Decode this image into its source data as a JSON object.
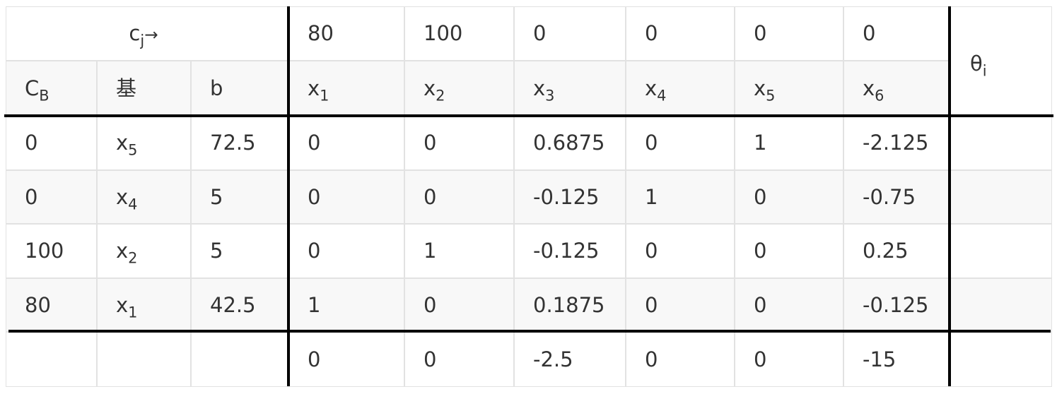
{
  "cj_row": {
    "label_var": "c",
    "label_sub": "j",
    "label_arrow": "→",
    "values": [
      "80",
      "100",
      "0",
      "0",
      "0",
      "0"
    ]
  },
  "header_row": {
    "cb_var": "C",
    "cb_sub": "B",
    "basis": "基",
    "b": "b",
    "vars": [
      {
        "var": "x",
        "sub": "1"
      },
      {
        "var": "x",
        "sub": "2"
      },
      {
        "var": "x",
        "sub": "3"
      },
      {
        "var": "x",
        "sub": "4"
      },
      {
        "var": "x",
        "sub": "5"
      },
      {
        "var": "x",
        "sub": "6"
      }
    ],
    "theta_var": "θ",
    "theta_sub": "i"
  },
  "rows": [
    {
      "cb": "0",
      "basis_var": "x",
      "basis_sub": "5",
      "b": "72.5",
      "values": [
        "0",
        "0",
        "0.6875",
        "0",
        "1",
        "-2.125"
      ]
    },
    {
      "cb": "0",
      "basis_var": "x",
      "basis_sub": "4",
      "b": "5",
      "values": [
        "0",
        "0",
        "-0.125",
        "1",
        "0",
        "-0.75"
      ]
    },
    {
      "cb": "100",
      "basis_var": "x",
      "basis_sub": "2",
      "b": "5",
      "values": [
        "0",
        "1",
        "-0.125",
        "0",
        "0",
        "0.25"
      ]
    },
    {
      "cb": "80",
      "basis_var": "x",
      "basis_sub": "1",
      "b": "42.5",
      "values": [
        "1",
        "0",
        "0.1875",
        "0",
        "0",
        "-0.125"
      ]
    }
  ],
  "check_row": {
    "values": [
      "0",
      "0",
      "-2.5",
      "0",
      "0",
      "-15"
    ]
  }
}
